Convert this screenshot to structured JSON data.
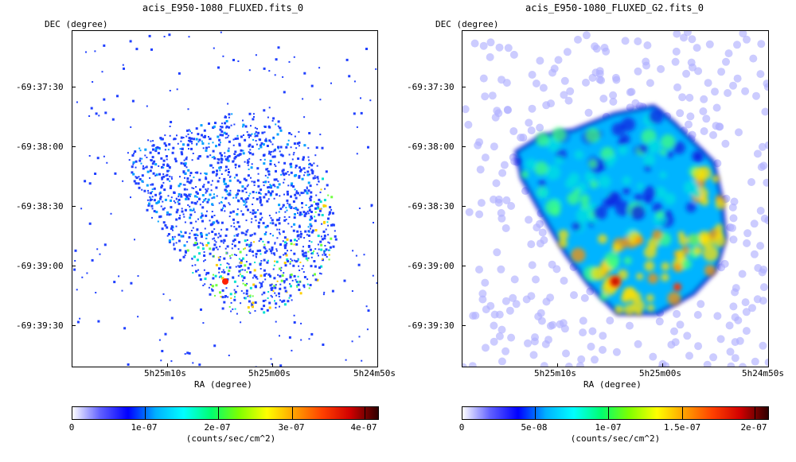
{
  "colors": {
    "colormap": [
      "#ffffff",
      "#6060ff",
      "#0000ff",
      "#00b0ff",
      "#00ffff",
      "#00ff70",
      "#7fff00",
      "#ffff00",
      "#ffa000",
      "#ff4000",
      "#d00000",
      "#300000"
    ]
  },
  "left_panel": {
    "title": "acis_E950-1080_FLUXED.fits_0",
    "y_axis_title": "DEC (degree)",
    "x_axis_title": "RA (degree)",
    "y_ticks": [
      "-69:37:30",
      "-69:38:00",
      "-69:38:30",
      "-69:39:00",
      "-69:39:30"
    ],
    "x_ticks": [
      "5h25m10s",
      "5h25m00s",
      "5h24m50s"
    ],
    "colorbar": {
      "ticks": [
        "0",
        "1e-07",
        "2e-07",
        "3e-07",
        "4e-07"
      ],
      "units": "(counts/sec/cm^2)"
    }
  },
  "right_panel": {
    "title": "acis_E950-1080_FLUXED_G2.fits_0",
    "y_axis_title": "DEC (degree)",
    "x_axis_title": "RA (degree)",
    "y_ticks": [
      "-69:37:30",
      "-69:38:00",
      "-69:38:30",
      "-69:39:00",
      "-69:39:30"
    ],
    "x_ticks": [
      "5h25m10s",
      "5h25m00s",
      "5h24m50s"
    ],
    "colorbar": {
      "ticks": [
        "0",
        "5e-08",
        "1e-07",
        "1.5e-07",
        "2e-07"
      ],
      "units": "(counts/sec/cm^2)"
    }
  }
}
